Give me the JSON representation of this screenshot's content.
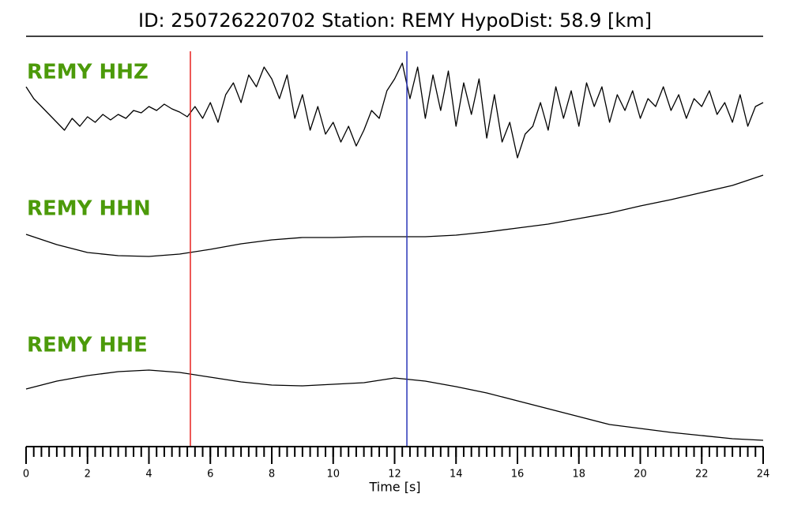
{
  "chart_data": {
    "type": "seismogram",
    "title": "ID: 250726220702   Station: REMY   HypoDist:    58.9 [km]",
    "xlabel": "Time [s]",
    "xlim": [
      0,
      24
    ],
    "xticks": [
      0,
      2,
      4,
      6,
      8,
      10,
      12,
      14,
      16,
      18,
      20,
      22,
      24
    ],
    "xminorticks": [
      0,
      0.25,
      0.5,
      0.75,
      1,
      1.25,
      1.5,
      1.75,
      2,
      2.25,
      2.5,
      2.75,
      3,
      3.25,
      3.5,
      3.75,
      4,
      4.25,
      4.5,
      4.75,
      5,
      5.25,
      5.5,
      5.75,
      6,
      6.25,
      6.5,
      6.75,
      7,
      7.25,
      7.5,
      7.75,
      8,
      8.25,
      8.5,
      8.75,
      9,
      9.25,
      9.5,
      9.75,
      10,
      10.25,
      10.5,
      10.75,
      11,
      11.25,
      11.5,
      11.75,
      12,
      12.25,
      12.5,
      12.75,
      13,
      13.25,
      13.5,
      13.75,
      14,
      14.25,
      14.5,
      14.75,
      15,
      15.25,
      15.5,
      15.75,
      16,
      16.25,
      16.5,
      16.75,
      17,
      17.25,
      17.5,
      17.75,
      18,
      18.25,
      18.5,
      18.75,
      19,
      19.25,
      19.5,
      19.75,
      20,
      20.25,
      20.5,
      20.75,
      21,
      21.25,
      21.5,
      21.75,
      22,
      22.25,
      22.5,
      22.75,
      23,
      23.25,
      23.5,
      23.75,
      24
    ],
    "picks": [
      {
        "x": 5.35,
        "color": "#e8201e"
      },
      {
        "x": 12.4,
        "color": "#2a35b8"
      }
    ],
    "label_color": "#4c9a0a",
    "series": [
      {
        "name": "REMY HHZ",
        "color": "#000000",
        "ylim": [
          -80,
          80
        ],
        "x": [
          0,
          0.25,
          0.5,
          0.75,
          1,
          1.25,
          1.5,
          1.75,
          2,
          2.25,
          2.5,
          2.75,
          3,
          3.25,
          3.5,
          3.75,
          4,
          4.25,
          4.5,
          4.75,
          5,
          5.25,
          5.5,
          5.75,
          6,
          6.25,
          6.5,
          6.75,
          7,
          7.25,
          7.5,
          7.75,
          8,
          8.25,
          8.5,
          8.75,
          9,
          9.25,
          9.5,
          9.75,
          10,
          10.25,
          10.5,
          10.75,
          11,
          11.25,
          11.5,
          11.75,
          12,
          12.25,
          12.5,
          12.75,
          13,
          13.25,
          13.5,
          13.75,
          14,
          14.25,
          14.5,
          14.75,
          15,
          15.25,
          15.5,
          15.75,
          16,
          16.25,
          16.5,
          16.75,
          17,
          17.25,
          17.5,
          17.75,
          18,
          18.25,
          18.5,
          18.75,
          19,
          19.25,
          19.5,
          19.75,
          20,
          20.25,
          20.5,
          20.75,
          21,
          21.25,
          21.5,
          21.75,
          22,
          22.25,
          22.5,
          22.75,
          23,
          23.25,
          23.5,
          23.75,
          24
        ],
        "values": [
          30,
          15,
          5,
          -5,
          -15,
          -25,
          -10,
          -20,
          -8,
          -15,
          -5,
          -12,
          -5,
          -10,
          0,
          -3,
          5,
          0,
          8,
          2,
          -2,
          -8,
          5,
          -10,
          10,
          -15,
          20,
          35,
          10,
          45,
          30,
          55,
          40,
          15,
          45,
          -10,
          20,
          -25,
          5,
          -30,
          -15,
          -40,
          -20,
          -45,
          -25,
          0,
          -10,
          25,
          40,
          60,
          15,
          55,
          -10,
          45,
          0,
          50,
          -20,
          35,
          -5,
          40,
          -35,
          20,
          -40,
          -15,
          -60,
          -30,
          -20,
          10,
          -25,
          30,
          -10,
          25,
          -20,
          35,
          5,
          30,
          -15,
          20,
          0,
          25,
          -10,
          15,
          5,
          30,
          0,
          20,
          -10,
          15,
          5,
          25,
          -5,
          10,
          -15,
          20,
          -20,
          5,
          10
        ]
      },
      {
        "name": "REMY HHN",
        "color": "#000000",
        "ylim": [
          -80,
          80
        ],
        "x": [
          0,
          1,
          2,
          3,
          4,
          5,
          6,
          7,
          8,
          9,
          10,
          11,
          12,
          13,
          14,
          15,
          16,
          17,
          18,
          19,
          20,
          21,
          22,
          23,
          24
        ],
        "values": [
          3,
          -10,
          -20,
          -24,
          -25,
          -22,
          -16,
          -9,
          -4,
          -1,
          -1,
          0,
          0,
          0,
          2,
          6,
          11,
          16,
          23,
          30,
          39,
          47,
          56,
          65,
          78
        ]
      },
      {
        "name": "REMY HHE",
        "color": "#000000",
        "ylim": [
          -80,
          80
        ],
        "x": [
          0,
          1,
          2,
          3,
          4,
          5,
          6,
          7,
          8,
          9,
          10,
          11,
          12,
          13,
          14,
          15,
          16,
          17,
          18,
          19,
          20,
          21,
          22,
          23,
          24
        ],
        "values": [
          -13,
          -3,
          4,
          9,
          11,
          8,
          2,
          -4,
          -8,
          -9,
          -7,
          -5,
          1,
          -3,
          -10,
          -18,
          -28,
          -38,
          -48,
          -58,
          -63,
          -68,
          -72,
          -76,
          -78
        ]
      }
    ]
  }
}
